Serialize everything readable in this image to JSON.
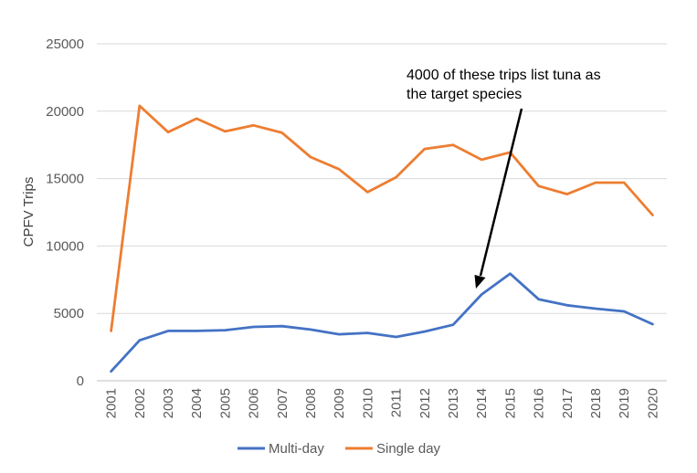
{
  "chart_data": {
    "type": "line",
    "title": "",
    "xlabel": "",
    "ylabel": "CPFV Trips",
    "categories": [
      "2001",
      "2002",
      "2003",
      "2004",
      "2005",
      "2006",
      "2007",
      "2008",
      "2009",
      "2010",
      "2011",
      "2012",
      "2013",
      "2014",
      "2015",
      "2016",
      "2017",
      "2018",
      "2019",
      "2020"
    ],
    "ylim": [
      0,
      25000
    ],
    "yticks": [
      "0",
      "5000",
      "10000",
      "15000",
      "20000",
      "25000"
    ],
    "grid": true,
    "legend_position": "bottom",
    "series": [
      {
        "name": "Multi-day",
        "color": "#4472C4",
        "values": [
          700,
          3000,
          3700,
          3700,
          3750,
          4000,
          4050,
          3800,
          3450,
          3550,
          3250,
          3650,
          4150,
          6400,
          7950,
          6050,
          5600,
          5350,
          5150,
          4200
        ]
      },
      {
        "name": "Single day",
        "color": "#ED7D31",
        "values": [
          3700,
          20400,
          18450,
          19450,
          18500,
          18950,
          18400,
          16600,
          15700,
          14000,
          15100,
          17200,
          17500,
          16400,
          16950,
          14450,
          13850,
          14700,
          14700,
          12300
        ]
      }
    ],
    "annotation": {
      "lines": [
        "4000 of these trips list tuna as",
        "the target species"
      ],
      "points_to_category": "2014"
    }
  }
}
